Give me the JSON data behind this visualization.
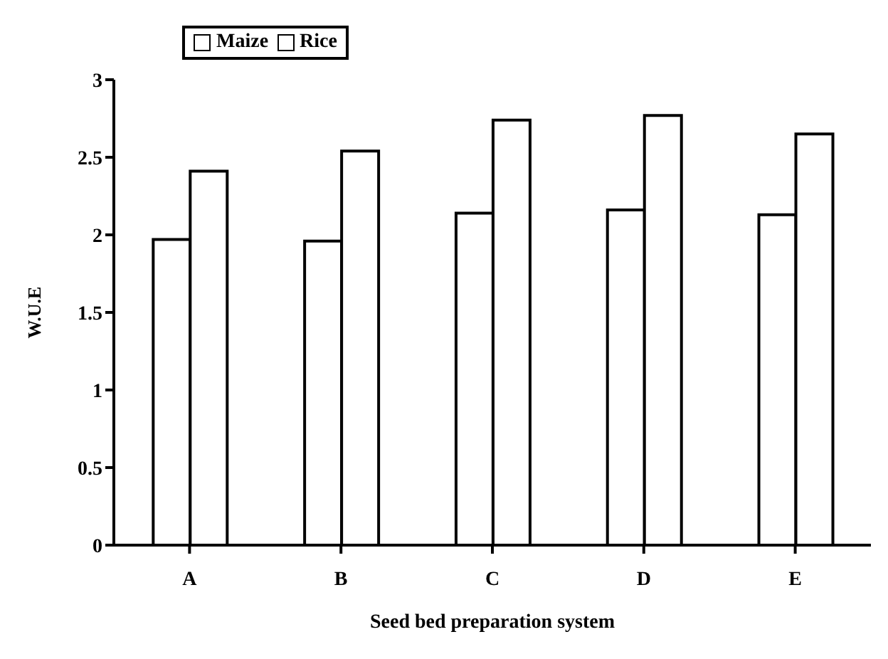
{
  "chart_data": {
    "type": "bar",
    "xlabel": "Seed bed preparation system",
    "ylabel": "W.U.E",
    "categories": [
      "A",
      "B",
      "C",
      "D",
      "E"
    ],
    "series": [
      {
        "name": "Maize",
        "color": "#ffffff",
        "values": [
          1.97,
          1.96,
          2.14,
          2.16,
          2.13
        ]
      },
      {
        "name": "Rice",
        "color": "#ffffff",
        "values": [
          2.41,
          2.54,
          2.74,
          2.77,
          2.65
        ]
      }
    ],
    "ylim": [
      0,
      3
    ],
    "yticks": [
      0,
      0.5,
      1,
      1.5,
      2,
      2.5,
      3
    ],
    "grid": false,
    "legend": "top"
  }
}
